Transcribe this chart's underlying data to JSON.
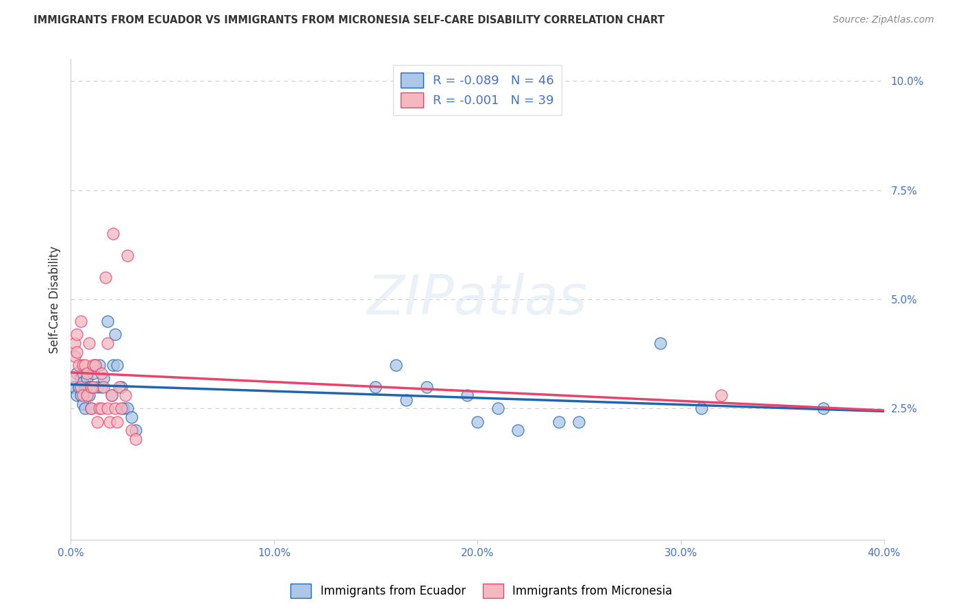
{
  "title": "IMMIGRANTS FROM ECUADOR VS IMMIGRANTS FROM MICRONESIA SELF-CARE DISABILITY CORRELATION CHART",
  "source": "Source: ZipAtlas.com",
  "ylabel": "Self-Care Disability",
  "legend_label1": "Immigrants from Ecuador",
  "legend_label2": "Immigrants from Micronesia",
  "r1": -0.089,
  "n1": 46,
  "r2": -0.001,
  "n2": 39,
  "color1": "#aec6e8",
  "color2": "#f4b8c1",
  "line_color1": "#2166ac",
  "line_color2": "#e8436a",
  "xlim": [
    0.0,
    0.4
  ],
  "ylim": [
    -0.005,
    0.105
  ],
  "xticks": [
    0.0,
    0.1,
    0.2,
    0.3,
    0.4
  ],
  "yticks": [
    0.025,
    0.05,
    0.075,
    0.1
  ],
  "background_color": "#ffffff",
  "ecuador_x": [
    0.001,
    0.002,
    0.003,
    0.003,
    0.004,
    0.005,
    0.005,
    0.006,
    0.006,
    0.007,
    0.007,
    0.008,
    0.008,
    0.009,
    0.009,
    0.01,
    0.01,
    0.011,
    0.012,
    0.013,
    0.014,
    0.015,
    0.016,
    0.018,
    0.02,
    0.021,
    0.022,
    0.023,
    0.025,
    0.026,
    0.028,
    0.03,
    0.032,
    0.15,
    0.16,
    0.165,
    0.175,
    0.195,
    0.2,
    0.21,
    0.22,
    0.24,
    0.25,
    0.29,
    0.31,
    0.37
  ],
  "ecuador_y": [
    0.03,
    0.03,
    0.028,
    0.033,
    0.03,
    0.032,
    0.028,
    0.031,
    0.026,
    0.03,
    0.025,
    0.03,
    0.032,
    0.03,
    0.028,
    0.03,
    0.025,
    0.033,
    0.035,
    0.03,
    0.035,
    0.03,
    0.032,
    0.045,
    0.028,
    0.035,
    0.042,
    0.035,
    0.03,
    0.025,
    0.025,
    0.023,
    0.02,
    0.03,
    0.035,
    0.027,
    0.03,
    0.028,
    0.022,
    0.025,
    0.02,
    0.022,
    0.022,
    0.04,
    0.025,
    0.025
  ],
  "micronesia_x": [
    0.001,
    0.002,
    0.002,
    0.003,
    0.003,
    0.004,
    0.005,
    0.005,
    0.006,
    0.006,
    0.007,
    0.008,
    0.008,
    0.009,
    0.01,
    0.01,
    0.011,
    0.011,
    0.012,
    0.013,
    0.014,
    0.015,
    0.015,
    0.016,
    0.017,
    0.018,
    0.018,
    0.019,
    0.02,
    0.021,
    0.022,
    0.023,
    0.024,
    0.025,
    0.027,
    0.028,
    0.03,
    0.032,
    0.32
  ],
  "micronesia_y": [
    0.032,
    0.04,
    0.037,
    0.042,
    0.038,
    0.035,
    0.03,
    0.045,
    0.035,
    0.028,
    0.035,
    0.028,
    0.033,
    0.04,
    0.03,
    0.025,
    0.03,
    0.035,
    0.035,
    0.022,
    0.025,
    0.025,
    0.033,
    0.03,
    0.055,
    0.025,
    0.04,
    0.022,
    0.028,
    0.065,
    0.025,
    0.022,
    0.03,
    0.025,
    0.028,
    0.06,
    0.02,
    0.018,
    0.028
  ]
}
